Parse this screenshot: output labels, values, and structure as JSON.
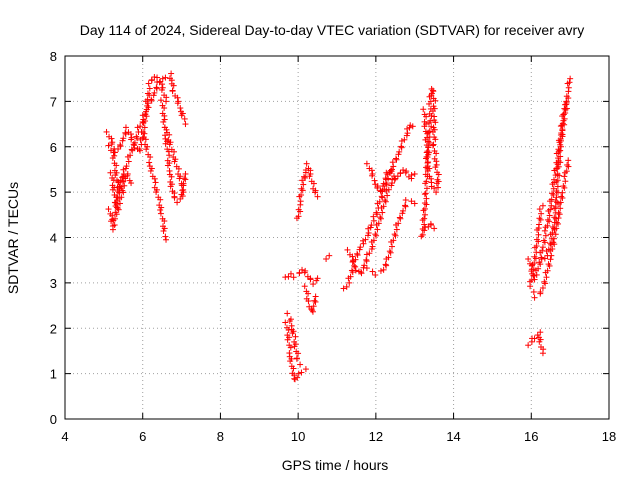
{
  "chart_data": {
    "type": "scatter",
    "title": "Day 114 of 2024, Sidereal Day-to-day VTEC variation (SDTVAR) for receiver avry",
    "xlabel": "GPS time / hours",
    "ylabel": "SDTVAR / TECUs",
    "xlim": [
      4,
      18
    ],
    "ylim": [
      0,
      8
    ],
    "xticks": [
      4,
      6,
      8,
      10,
      12,
      14,
      16,
      18
    ],
    "yticks": [
      0,
      1,
      2,
      3,
      4,
      5,
      6,
      7,
      8
    ],
    "xtick_labels": [
      "4",
      "6",
      "8",
      "10",
      "12",
      "14",
      "16",
      "18"
    ],
    "ytick_labels": [
      "0",
      "1",
      "2",
      "3",
      "4",
      "5",
      "6",
      "7",
      "8"
    ],
    "grid": true,
    "marker": "+",
    "color": "#ff0000",
    "series": [
      {
        "name": "SDTVAR",
        "segments": [
          [
            [
              5.15,
              4.6
            ],
            [
              5.2,
              4.4
            ],
            [
              5.25,
              4.2
            ],
            [
              5.3,
              4.5
            ],
            [
              5.35,
              4.9
            ],
            [
              5.4,
              5.2
            ],
            [
              5.5,
              5.4
            ],
            [
              5.6,
              5.6
            ],
            [
              5.7,
              5.9
            ],
            [
              5.8,
              6.1
            ],
            [
              5.9,
              6.4
            ],
            [
              6.0,
              6.6
            ],
            [
              6.1,
              6.8
            ],
            [
              6.2,
              7.0
            ],
            [
              6.3,
              7.2
            ],
            [
              6.4,
              7.4
            ],
            [
              6.5,
              7.5
            ],
            [
              6.6,
              7.55
            ],
            [
              6.7,
              7.6
            ],
            [
              6.75,
              7.4
            ],
            [
              6.8,
              7.2
            ],
            [
              6.9,
              7.0
            ],
            [
              7.0,
              6.8
            ],
            [
              7.05,
              6.6
            ],
            [
              7.1,
              6.5
            ]
          ],
          [
            [
              5.1,
              6.3
            ],
            [
              5.2,
              6.1
            ],
            [
              5.3,
              5.9
            ],
            [
              5.4,
              6.0
            ],
            [
              5.5,
              6.2
            ],
            [
              5.6,
              6.4
            ],
            [
              5.7,
              6.2
            ],
            [
              5.8,
              6.0
            ],
            [
              5.9,
              5.9
            ],
            [
              6.0,
              6.2
            ],
            [
              6.05,
              6.5
            ],
            [
              6.1,
              6.9
            ],
            [
              6.15,
              7.2
            ],
            [
              6.2,
              7.45
            ],
            [
              6.3,
              7.55
            ],
            [
              6.4,
              7.5
            ],
            [
              6.5,
              7.3
            ],
            [
              6.6,
              7.0
            ]
          ],
          [
            [
              5.15,
              6.0
            ],
            [
              5.25,
              5.8
            ],
            [
              5.3,
              5.5
            ],
            [
              5.35,
              5.2
            ],
            [
              5.4,
              5.0
            ],
            [
              5.5,
              5.3
            ],
            [
              5.6,
              5.4
            ],
            [
              5.7,
              5.2
            ]
          ],
          [
            [
              5.2,
              5.4
            ],
            [
              5.25,
              5.1
            ],
            [
              5.3,
              4.8
            ],
            [
              5.35,
              4.6
            ],
            [
              5.45,
              4.9
            ],
            [
              5.55,
              5.3
            ]
          ],
          [
            [
              6.0,
              6.3
            ],
            [
              6.1,
              6.0
            ],
            [
              6.2,
              5.6
            ],
            [
              6.3,
              5.2
            ],
            [
              6.4,
              4.9
            ],
            [
              6.5,
              4.5
            ],
            [
              6.55,
              4.2
            ],
            [
              6.6,
              3.95
            ]
          ],
          [
            [
              6.5,
              7.0
            ],
            [
              6.55,
              6.6
            ],
            [
              6.6,
              6.2
            ],
            [
              6.65,
              5.8
            ],
            [
              6.7,
              5.4
            ],
            [
              6.75,
              5.1
            ],
            [
              6.8,
              4.9
            ],
            [
              6.9,
              4.8
            ],
            [
              7.0,
              4.9
            ],
            [
              7.05,
              5.2
            ],
            [
              7.1,
              5.4
            ]
          ],
          [
            [
              6.6,
              6.4
            ],
            [
              6.7,
              6.1
            ],
            [
              6.8,
              5.8
            ],
            [
              6.9,
              5.5
            ],
            [
              7.0,
              5.2
            ],
            [
              7.05,
              5.0
            ]
          ],
          [
            [
              9.7,
              2.1
            ],
            [
              9.75,
              1.8
            ],
            [
              9.8,
              1.4
            ],
            [
              9.85,
              1.1
            ],
            [
              9.9,
              0.9
            ],
            [
              9.95,
              0.85
            ],
            [
              10.0,
              1.0
            ],
            [
              10.1,
              1.05
            ],
            [
              10.2,
              1.1
            ]
          ],
          [
            [
              9.75,
              2.3
            ],
            [
              9.8,
              2.2
            ],
            [
              9.85,
              2.0
            ],
            [
              9.9,
              1.8
            ],
            [
              9.95,
              1.5
            ],
            [
              10.0,
              1.3
            ],
            [
              10.05,
              1.2
            ]
          ],
          [
            [
              9.7,
              3.1
            ],
            [
              9.8,
              3.2
            ],
            [
              9.9,
              3.15
            ],
            [
              10.0,
              3.2
            ],
            [
              10.1,
              3.3
            ],
            [
              10.2,
              3.2
            ],
            [
              10.3,
              3.1
            ],
            [
              10.4,
              3.0
            ],
            [
              10.5,
              3.1
            ]
          ],
          [
            [
              10.0,
              4.4
            ],
            [
              10.05,
              4.8
            ],
            [
              10.1,
              5.1
            ],
            [
              10.15,
              5.3
            ],
            [
              10.2,
              5.5
            ],
            [
              10.25,
              5.6
            ],
            [
              10.3,
              5.4
            ],
            [
              10.4,
              5.1
            ],
            [
              10.5,
              4.9
            ]
          ],
          [
            [
              10.2,
              2.9
            ],
            [
              10.25,
              2.6
            ],
            [
              10.3,
              2.5
            ],
            [
              10.35,
              2.35
            ],
            [
              10.4,
              2.5
            ],
            [
              10.45,
              2.7
            ]
          ],
          [
            [
              10.75,
              3.5
            ],
            [
              10.8,
              3.6
            ]
          ],
          [
            [
              11.2,
              2.85
            ],
            [
              11.3,
              3.0
            ],
            [
              11.4,
              3.3
            ],
            [
              11.5,
              3.6
            ],
            [
              11.6,
              3.8
            ],
            [
              11.7,
              3.9
            ],
            [
              11.8,
              4.1
            ],
            [
              11.9,
              4.3
            ],
            [
              12.0,
              4.5
            ],
            [
              12.1,
              4.8
            ],
            [
              12.2,
              5.0
            ],
            [
              12.3,
              5.3
            ],
            [
              12.4,
              5.5
            ],
            [
              12.5,
              5.7
            ],
            [
              12.6,
              5.9
            ],
            [
              12.7,
              6.1
            ],
            [
              12.8,
              6.3
            ],
            [
              12.9,
              6.5
            ],
            [
              12.95,
              6.45
            ]
          ],
          [
            [
              11.3,
              3.7
            ],
            [
              11.4,
              3.5
            ],
            [
              11.5,
              3.3
            ],
            [
              11.6,
              3.2
            ],
            [
              11.7,
              3.4
            ],
            [
              11.8,
              3.6
            ],
            [
              11.9,
              3.8
            ],
            [
              12.0,
              4.1
            ],
            [
              12.1,
              4.4
            ],
            [
              12.2,
              4.7
            ],
            [
              12.3,
              5.0
            ],
            [
              12.4,
              5.2
            ],
            [
              12.5,
              5.3
            ]
          ],
          [
            [
              11.8,
              3.3
            ],
            [
              11.9,
              3.25
            ],
            [
              12.0,
              3.2
            ],
            [
              12.1,
              3.25
            ],
            [
              12.2,
              3.3
            ],
            [
              12.3,
              3.5
            ],
            [
              12.4,
              3.8
            ],
            [
              12.5,
              4.1
            ],
            [
              12.6,
              4.4
            ],
            [
              12.7,
              4.6
            ],
            [
              12.8,
              4.8
            ],
            [
              12.9,
              4.8
            ],
            [
              13.0,
              4.75
            ]
          ],
          [
            [
              11.8,
              5.6
            ],
            [
              11.9,
              5.4
            ],
            [
              12.0,
              5.2
            ],
            [
              12.1,
              5.0
            ],
            [
              12.2,
              5.2
            ],
            [
              12.3,
              5.4
            ],
            [
              12.4,
              5.5
            ],
            [
              12.5,
              5.3
            ],
            [
              12.6,
              5.4
            ],
            [
              12.7,
              5.5
            ],
            [
              12.8,
              5.4
            ],
            [
              12.9,
              5.3
            ],
            [
              13.0,
              5.4
            ]
          ],
          [
            [
              13.2,
              4.0
            ],
            [
              13.25,
              4.5
            ],
            [
              13.3,
              5.0
            ],
            [
              13.3,
              5.5
            ],
            [
              13.35,
              6.0
            ],
            [
              13.4,
              6.5
            ],
            [
              13.4,
              7.0
            ],
            [
              13.45,
              7.3
            ],
            [
              13.5,
              7.0
            ],
            [
              13.5,
              6.6
            ],
            [
              13.5,
              6.0
            ],
            [
              13.55,
              5.6
            ],
            [
              13.6,
              5.3
            ],
            [
              13.6,
              5.1
            ]
          ],
          [
            [
              13.25,
              6.8
            ],
            [
              13.3,
              6.2
            ],
            [
              13.35,
              5.6
            ],
            [
              13.4,
              5.2
            ],
            [
              13.5,
              5.1
            ],
            [
              13.55,
              5.0
            ]
          ],
          [
            [
              13.3,
              4.2
            ],
            [
              13.4,
              4.3
            ],
            [
              13.5,
              4.2
            ]
          ],
          [
            [
              15.95,
              1.6
            ],
            [
              16.0,
              1.7
            ],
            [
              16.1,
              1.8
            ],
            [
              16.2,
              1.9
            ],
            [
              16.25,
              1.6
            ],
            [
              16.3,
              1.45
            ]
          ],
          [
            [
              16.0,
              2.9
            ],
            [
              16.05,
              2.8
            ],
            [
              16.1,
              2.7
            ],
            [
              16.2,
              2.75
            ],
            [
              16.3,
              2.9
            ],
            [
              16.4,
              3.2
            ],
            [
              16.5,
              3.6
            ],
            [
              16.6,
              4.0
            ],
            [
              16.7,
              4.5
            ],
            [
              16.8,
              5.0
            ],
            [
              16.9,
              5.4
            ],
            [
              16.95,
              5.7
            ]
          ],
          [
            [
              15.95,
              3.5
            ],
            [
              16.0,
              3.3
            ],
            [
              16.1,
              3.1
            ],
            [
              16.2,
              3.4
            ],
            [
              16.3,
              3.8
            ],
            [
              16.4,
              4.2
            ],
            [
              16.5,
              4.7
            ],
            [
              16.6,
              5.3
            ],
            [
              16.7,
              5.9
            ],
            [
              16.8,
              6.4
            ],
            [
              16.9,
              6.9
            ],
            [
              16.95,
              7.3
            ],
            [
              17.0,
              7.5
            ]
          ],
          [
            [
              16.0,
              3.0
            ],
            [
              16.05,
              3.3
            ],
            [
              16.1,
              3.6
            ],
            [
              16.15,
              3.9
            ],
            [
              16.2,
              4.3
            ],
            [
              16.25,
              4.6
            ],
            [
              16.3,
              4.7
            ]
          ],
          [
            [
              16.3,
              3.5
            ],
            [
              16.4,
              3.6
            ],
            [
              16.5,
              3.9
            ],
            [
              16.6,
              4.4
            ],
            [
              16.65,
              4.9
            ],
            [
              16.7,
              5.5
            ],
            [
              16.75,
              6.0
            ],
            [
              16.8,
              6.5
            ],
            [
              16.85,
              6.8
            ],
            [
              16.9,
              7.0
            ]
          ]
        ]
      }
    ]
  }
}
